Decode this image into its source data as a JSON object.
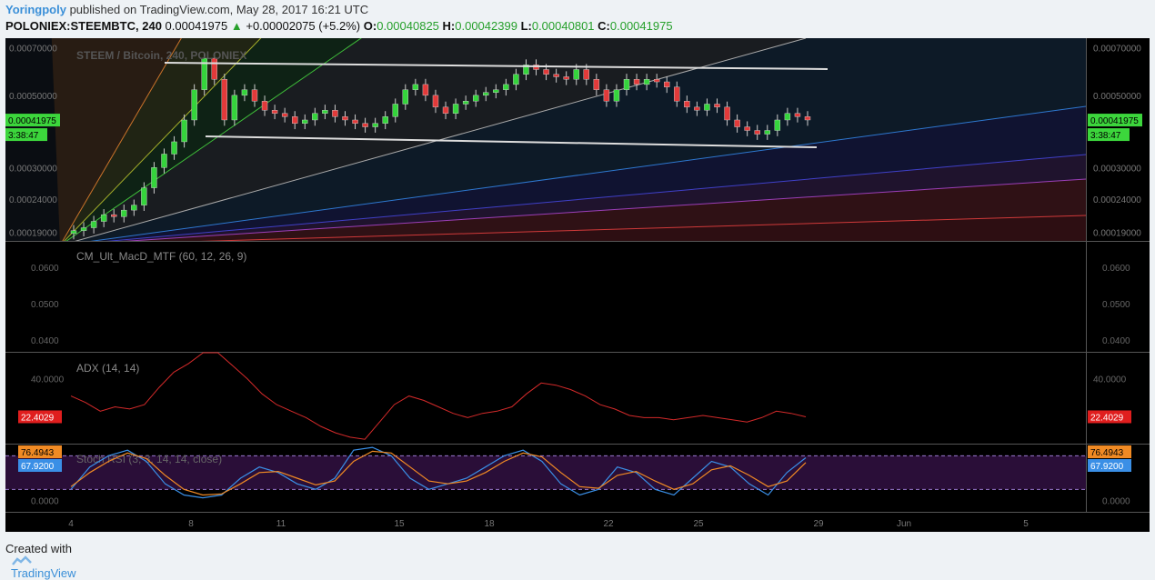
{
  "header": {
    "user": "Yoringpoly",
    "published": "published on TradingView.com, May 28, 2017 16:21 UTC",
    "symbol": "POLONIEX:STEEMBTC, 240",
    "last": "0.00041975",
    "change": "+0.00002075 (+5.2%)",
    "o_label": "O:",
    "o": "0.00040825",
    "h_label": "H:",
    "h": "0.00042399",
    "l_label": "L:",
    "l": "0.00040801",
    "c_label": "C:",
    "c": "0.00041975"
  },
  "footer": {
    "created": "Created with",
    "brand": "TradingView"
  },
  "colors": {
    "up": "#35d43c",
    "down": "#e23a3a",
    "bg": "#000000",
    "panel_line": "#555555",
    "macd_label": "#888888"
  },
  "chart_data": [
    {
      "type": "candlestick",
      "title": "STEEM / Bitcoin, 240, POLONIEX",
      "yticks": [
        "0.00070000",
        "0.00050000",
        "0.00030000",
        "0.00024000",
        "0.00019000"
      ],
      "ylim": [
        0.000188,
        0.00073
      ],
      "last_price_label": "0.00041975",
      "countdown_label": "3:38:47",
      "xticks": [
        "4",
        "8",
        "11",
        "15",
        "18",
        "22",
        "25",
        "29",
        "Jun",
        "5"
      ],
      "x_range_days": [
        4,
        36
      ],
      "ohlc_approx_closes": [
        0.000192,
        0.000196,
        0.000205,
        0.000215,
        0.000212,
        0.000222,
        0.00023,
        0.00026,
        0.0003,
        0.00033,
        0.00036,
        0.00042,
        0.00052,
        0.00065,
        0.00056,
        0.00042,
        0.0005,
        0.00052,
        0.00048,
        0.00045,
        0.00044,
        0.00043,
        0.00041,
        0.00042,
        0.00044,
        0.00045,
        0.00043,
        0.00042,
        0.00041,
        0.0004,
        0.00041,
        0.00043,
        0.00047,
        0.00052,
        0.00054,
        0.0005,
        0.00046,
        0.00044,
        0.00047,
        0.00048,
        0.0005,
        0.00051,
        0.00052,
        0.00054,
        0.00058,
        0.00062,
        0.0006,
        0.00058,
        0.00057,
        0.00056,
        0.0006,
        0.00056,
        0.00052,
        0.00048,
        0.00052,
        0.00056,
        0.00054,
        0.00056,
        0.00055,
        0.00053,
        0.00048,
        0.00046,
        0.00045,
        0.00047,
        0.00046,
        0.00042,
        0.0004,
        0.00039,
        0.00038,
        0.00039,
        0.00042,
        0.00044,
        0.00043,
        0.00042
      ]
    },
    {
      "type": "line",
      "title": "CM_Ult_MacD_MTF (60, 12, 26, 9)",
      "yticks": [
        "0.0600",
        "0.0500",
        "0.0400"
      ]
    },
    {
      "type": "line",
      "title": "ADX (14, 14)",
      "yticks": [
        "40.0000"
      ],
      "last_label": "22.4029",
      "ylim": [
        10,
        52
      ],
      "values": [
        32,
        29,
        25,
        27,
        26,
        28,
        36,
        43,
        47,
        52,
        52,
        46,
        40,
        33,
        28,
        25,
        22,
        18,
        15,
        13,
        12,
        20,
        28,
        32,
        30,
        27,
        24,
        22,
        24,
        25,
        27,
        33,
        38,
        37,
        35,
        32,
        28,
        26,
        23,
        22,
        22,
        21,
        22,
        23,
        22,
        21,
        20,
        22,
        25,
        24,
        22.4
      ]
    },
    {
      "type": "line",
      "title": "Stoch RSI (3, 3, 14, 14, close)",
      "yticks": [
        "0.0000"
      ],
      "k_label": "76.4943",
      "d_label": "67.9200",
      "ylim": [
        -20,
        100
      ],
      "series": [
        {
          "name": "K",
          "values": [
            20,
            60,
            80,
            90,
            70,
            30,
            10,
            5,
            10,
            40,
            60,
            50,
            30,
            20,
            40,
            90,
            95,
            80,
            40,
            20,
            30,
            40,
            60,
            80,
            90,
            70,
            30,
            10,
            20,
            60,
            50,
            20,
            10,
            40,
            70,
            60,
            30,
            10,
            50,
            76.5
          ]
        },
        {
          "name": "D",
          "values": [
            25,
            50,
            70,
            85,
            75,
            45,
            20,
            10,
            12,
            30,
            50,
            52,
            40,
            28,
            35,
            70,
            88,
            85,
            60,
            35,
            30,
            35,
            50,
            70,
            85,
            78,
            50,
            25,
            22,
            45,
            52,
            35,
            20,
            30,
            55,
            62,
            45,
            25,
            35,
            67.9
          ]
        }
      ]
    }
  ]
}
